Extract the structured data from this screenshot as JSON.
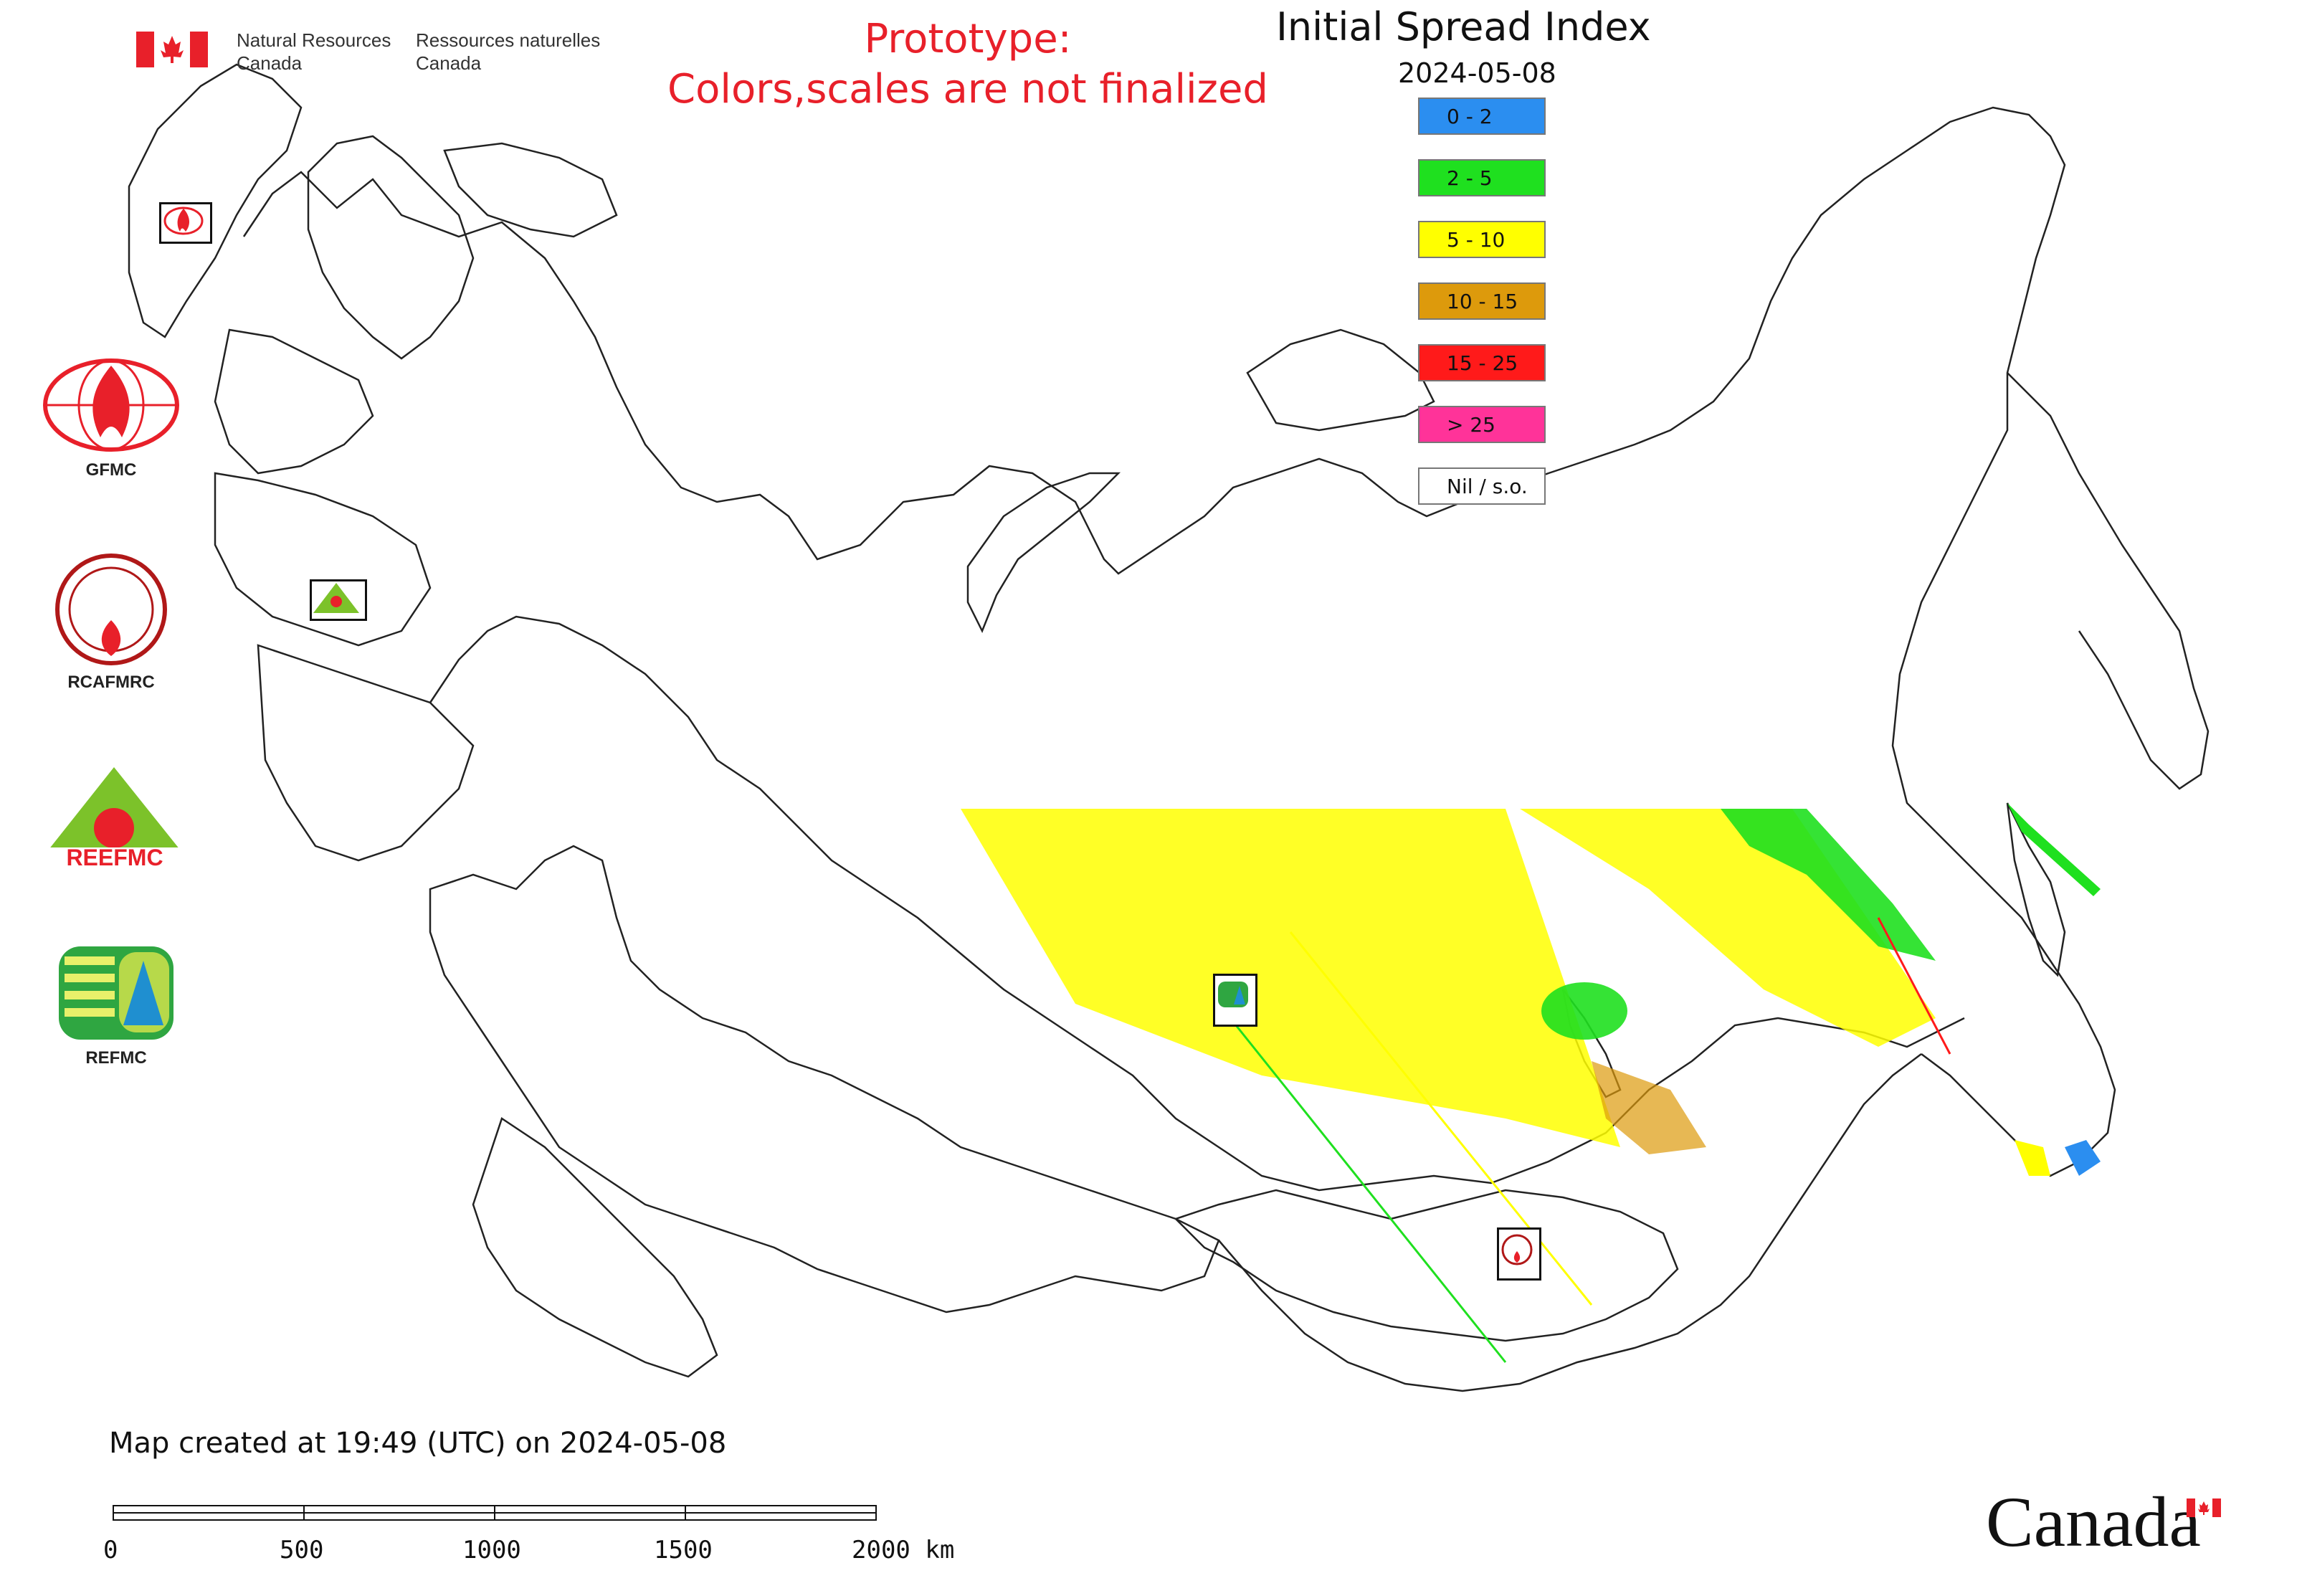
{
  "header": {
    "department_en_line1": "Natural Resources",
    "department_en_line2": "Canada",
    "department_fr_line1": "Ressources naturelles",
    "department_fr_line2": "Canada"
  },
  "prototype_notice": {
    "line1": "Prototype:",
    "line2": "Colors,scales are not finalized"
  },
  "map_title": "Initial Spread Index",
  "map_date": "2024-05-08",
  "legend": [
    {
      "label": "0 - 2",
      "color": "#2b8ef0"
    },
    {
      "label": "2 - 5",
      "color": "#1fe01f"
    },
    {
      "label": "5 - 10",
      "color": "#ffff00"
    },
    {
      "label": "10 - 15",
      "color": "#dd9a0c"
    },
    {
      "label": "15 - 25",
      "color": "#ff1a1a"
    },
    {
      "label": "> 25",
      "color": "#ff3399"
    },
    {
      "label": "Nil / s.o.",
      "color": "#ffffff"
    }
  ],
  "partners": [
    {
      "label": "GFMC",
      "icon": "gfmc-logo-icon"
    },
    {
      "label": "RCAFMRC",
      "icon": "rcafmrc-logo-icon"
    },
    {
      "label": "REEFMC",
      "icon": "reefmc-logo-icon"
    },
    {
      "label": "REFMC",
      "icon": "refmc-logo-icon"
    }
  ],
  "created_note": "Map created at 19:49 (UTC) on 2024-05-08",
  "scale_bar": {
    "labels": [
      "0",
      "500",
      "1000",
      "1500",
      "2000 km"
    ]
  },
  "wordmark": "Canada",
  "colors": {
    "flag_red": "#e8202a",
    "prototype_red": "#e8202a",
    "outline": "#111111"
  }
}
